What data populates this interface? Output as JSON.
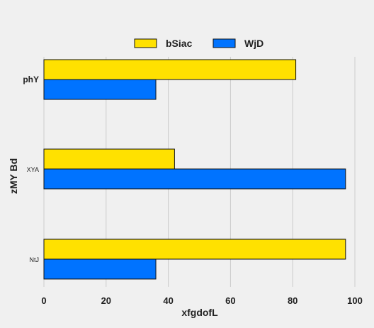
{
  "chart_data": {
    "type": "bar",
    "orientation": "horizontal",
    "categories": [
      "phY",
      "XYA",
      "NtJ"
    ],
    "series": [
      {
        "name": "bSiac",
        "color": "#ffe100",
        "values": [
          81,
          42,
          97
        ]
      },
      {
        "name": "WjD",
        "color": "#0073ff",
        "values": [
          36,
          97,
          36
        ]
      }
    ],
    "title": "",
    "xlabel": "xfgdofL",
    "ylabel": "zMY Bd",
    "xlim": [
      0,
      100
    ],
    "xticks": [
      0,
      20,
      40,
      60,
      80,
      100
    ],
    "grid": true,
    "legend_position": "top-center",
    "background_color": "#f0f0f0",
    "grid_color": "#cbcbcb"
  }
}
